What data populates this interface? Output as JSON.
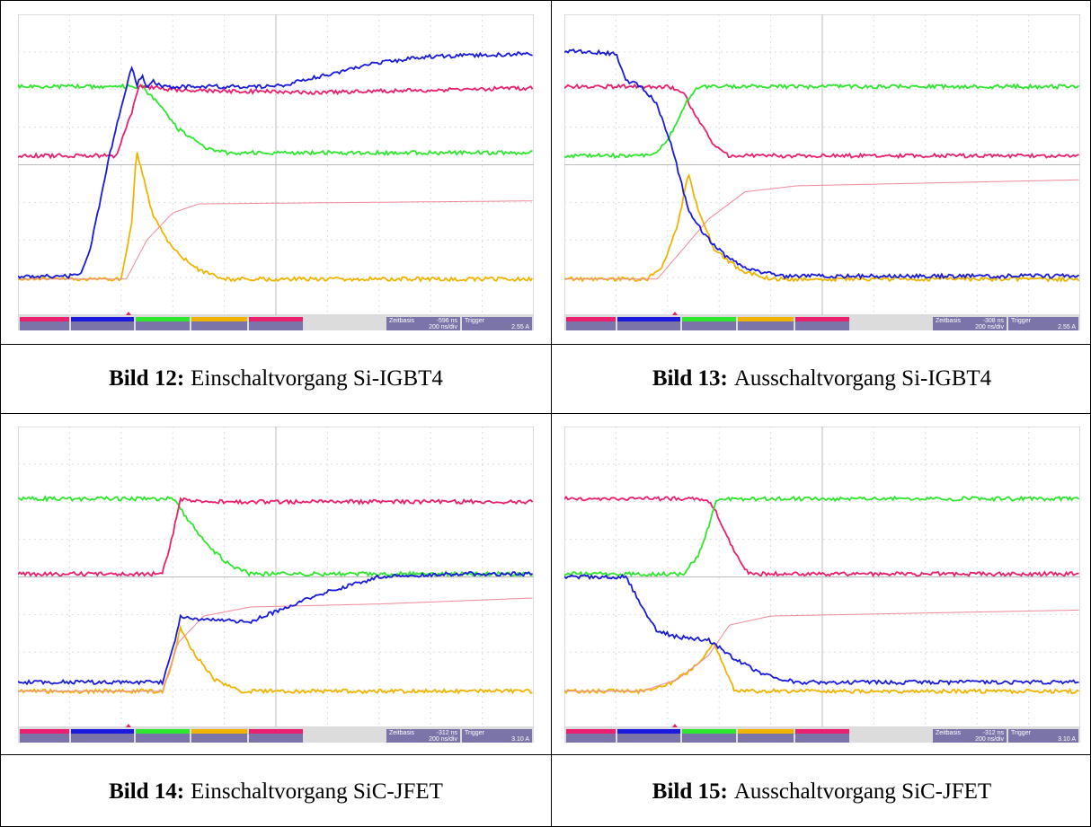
{
  "panels": [
    {
      "scope": {
        "timebase_label": "Zeitbasis",
        "timebase": "-596 ns",
        "div": "200 ns/div",
        "trigger_label": "Trigger",
        "trigger_level": "2.55 A"
      },
      "caption": {
        "label": "Bild 12:",
        "text": "Einschaltvorgang Si-IGBT4"
      }
    },
    {
      "scope": {
        "timebase_label": "Zeitbasis",
        "timebase": "-308 ns",
        "div": "200 ns/div",
        "trigger_label": "Trigger",
        "trigger_level": "2.55 A"
      },
      "caption": {
        "label": "Bild 13:",
        "text": "Ausschaltvorgang Si-IGBT4"
      }
    },
    {
      "scope": {
        "timebase_label": "Zeitbasis",
        "timebase": "-312 ns",
        "div": "200 ns/div",
        "trigger_label": "Trigger",
        "trigger_level": "3.10 A"
      },
      "caption": {
        "label": "Bild 14:",
        "text": "Einschaltvorgang SiC-JFET"
      }
    },
    {
      "scope": {
        "timebase_label": "Zeitbasis",
        "timebase": "-312 ns",
        "div": "200 ns/div",
        "trigger_label": "Trigger",
        "trigger_level": "3.10 A"
      },
      "caption": {
        "label": "Bild 15:",
        "text": "Ausschaltvorgang SiC-JFET"
      }
    }
  ]
}
